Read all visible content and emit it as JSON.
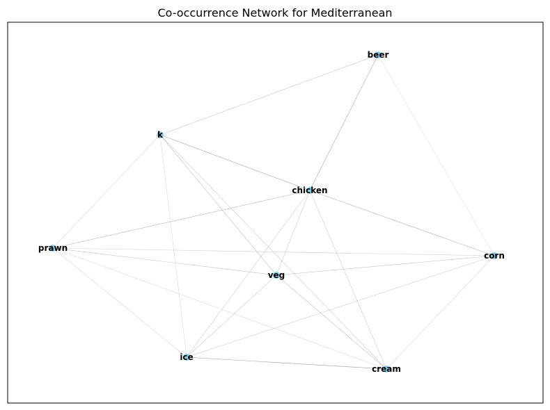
{
  "title": "Co-occurrence Network for Mediterranean",
  "colors": {
    "node_fill": "#87CEEB",
    "edge": "#808080",
    "frame": "#000000"
  },
  "nodes": [
    {
      "id": "beer",
      "label": "beer"
    },
    {
      "id": "k",
      "label": "k"
    },
    {
      "id": "chicken",
      "label": "chicken"
    },
    {
      "id": "prawn",
      "label": "prawn"
    },
    {
      "id": "corn",
      "label": "corn"
    },
    {
      "id": "veg",
      "label": "veg"
    },
    {
      "id": "ice",
      "label": "ice"
    },
    {
      "id": "cream",
      "label": "cream"
    }
  ],
  "edges": [
    {
      "source": "beer",
      "target": "k",
      "weight": 0.4
    },
    {
      "source": "beer",
      "target": "chicken",
      "weight": 0.7
    },
    {
      "source": "beer",
      "target": "corn",
      "weight": 0.15
    },
    {
      "source": "k",
      "target": "chicken",
      "weight": 0.75
    },
    {
      "source": "k",
      "target": "prawn",
      "weight": 0.2
    },
    {
      "source": "k",
      "target": "veg",
      "weight": 0.45
    },
    {
      "source": "k",
      "target": "ice",
      "weight": 0.2
    },
    {
      "source": "k",
      "target": "cream",
      "weight": 0.35
    },
    {
      "source": "chicken",
      "target": "prawn",
      "weight": 0.55
    },
    {
      "source": "chicken",
      "target": "corn",
      "weight": 0.6
    },
    {
      "source": "chicken",
      "target": "veg",
      "weight": 0.35
    },
    {
      "source": "chicken",
      "target": "ice",
      "weight": 0.35
    },
    {
      "source": "chicken",
      "target": "cream",
      "weight": 0.35
    },
    {
      "source": "prawn",
      "target": "corn",
      "weight": 0.3
    },
    {
      "source": "prawn",
      "target": "veg",
      "weight": 0.45
    },
    {
      "source": "prawn",
      "target": "ice",
      "weight": 0.25
    },
    {
      "source": "prawn",
      "target": "cream",
      "weight": 0.2
    },
    {
      "source": "corn",
      "target": "veg",
      "weight": 0.45
    },
    {
      "source": "corn",
      "target": "ice",
      "weight": 0.3
    },
    {
      "source": "corn",
      "target": "cream",
      "weight": 0.25
    },
    {
      "source": "veg",
      "target": "ice",
      "weight": 0.4
    },
    {
      "source": "veg",
      "target": "cream",
      "weight": 0.45
    },
    {
      "source": "ice",
      "target": "cream",
      "weight": 0.85
    }
  ]
}
